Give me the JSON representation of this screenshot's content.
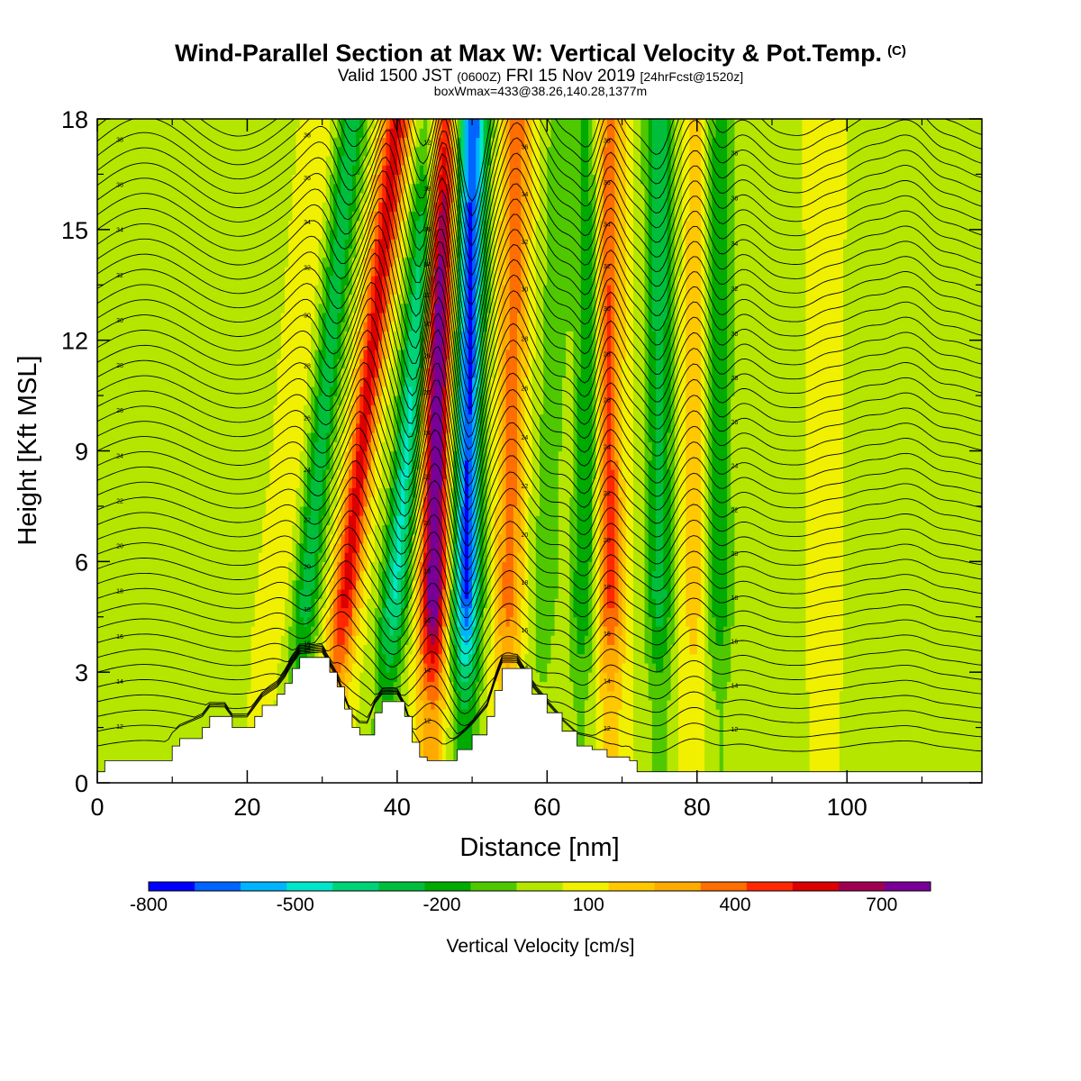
{
  "header": {
    "title": "Wind-Parallel Section at Max W: Vertical Velocity & Pot.Temp.",
    "title_mark": "(C)",
    "valid_prefix": "Valid 1500 JST",
    "valid_z": "(0600Z)",
    "valid_date": "FRI 15 Nov 2019",
    "forecast": "[24hrFcst@1520z]",
    "boxinfo": "boxWmax=433@38.26,140.28,1377m"
  },
  "chart_data": {
    "type": "heatmap",
    "title": "Wind-Parallel Section at Max W: Vertical Velocity & Pot.Temp.",
    "xlabel": "Distance [nm]",
    "ylabel": "Height [Kft MSL]",
    "xlim": [
      0,
      118
    ],
    "ylim": [
      0,
      18
    ],
    "x_ticks": [
      "0",
      "20",
      "40",
      "60",
      "80",
      "100"
    ],
    "y_ticks": [
      "0",
      "3",
      "6",
      "9",
      "12",
      "15",
      "18"
    ],
    "fill_variable": "Vertical Velocity [cm/s]",
    "contour_variable": "Potential Temperature (C)",
    "colorbar": {
      "label": "Vertical Velocity [cm/s]",
      "range": [
        -800,
        800
      ],
      "tick_labels": [
        "-800",
        "-500",
        "-200",
        "100",
        "400",
        "700"
      ],
      "colors": [
        "#0000ff",
        "#0064ff",
        "#00b4ff",
        "#00e6c8",
        "#00d278",
        "#00be3c",
        "#00aa00",
        "#50c800",
        "#b4e600",
        "#f0f000",
        "#ffc800",
        "#ffaa00",
        "#ff6e00",
        "#ff2800",
        "#dc0000",
        "#a00050",
        "#780096"
      ]
    },
    "bands": [
      {
        "x": 22.0,
        "w": 80,
        "tilt": 8,
        "top_x": 30.0
      },
      {
        "x": 26.0,
        "w": -330,
        "tilt": 8,
        "top_x": 34.0
      },
      {
        "x": 31.0,
        "w": 520,
        "tilt": 8,
        "top_x": 40.0
      },
      {
        "x": 38.0,
        "w": -480,
        "tilt": 6,
        "top_x": 45.0
      },
      {
        "x": 44.5,
        "w": 780,
        "tilt": 4,
        "top_x": 46.0
      },
      {
        "x": 49.0,
        "w": -760,
        "tilt": 2,
        "top_x": 50.0
      },
      {
        "x": 54.5,
        "w": 340,
        "tilt": 3,
        "top_x": 56.0
      },
      {
        "x": 59.0,
        "w": -170,
        "tilt": 4,
        "top_x": 62.0
      },
      {
        "x": 64.5,
        "w": -280,
        "tilt": 3,
        "top_x": 66.0
      },
      {
        "x": 68.5,
        "w": 420,
        "tilt": 1,
        "top_x": 68.0
      },
      {
        "x": 75.0,
        "w": -330,
        "tilt": 2,
        "top_x": 75.0
      },
      {
        "x": 79.5,
        "w": 160,
        "tilt": 2,
        "top_x": 80.0
      },
      {
        "x": 83.0,
        "w": -260,
        "tilt": 1,
        "top_x": 83.0
      },
      {
        "x": 90.0,
        "w": -40,
        "tilt": 0,
        "top_x": 90.0
      },
      {
        "x": 97.0,
        "w": 60,
        "tilt": 0,
        "top_x": 97.0
      },
      {
        "x": 105.0,
        "w": -60,
        "tilt": 0,
        "top_x": 105.0
      },
      {
        "x": 112.0,
        "w": -80,
        "tilt": 0,
        "top_x": 112.0
      }
    ],
    "terrain": [
      [
        0,
        0.3
      ],
      [
        1,
        0.6
      ],
      [
        9,
        0.6
      ],
      [
        10,
        1.0
      ],
      [
        11,
        1.2
      ],
      [
        14,
        1.5
      ],
      [
        15,
        1.8
      ],
      [
        17,
        1.8
      ],
      [
        18,
        1.5
      ],
      [
        20,
        1.5
      ],
      [
        21,
        1.8
      ],
      [
        22,
        2.1
      ],
      [
        24,
        2.4
      ],
      [
        25,
        2.7
      ],
      [
        26,
        3.1
      ],
      [
        27,
        3.4
      ],
      [
        30,
        3.4
      ],
      [
        31,
        3.0
      ],
      [
        32,
        2.6
      ],
      [
        33,
        2.0
      ],
      [
        34,
        1.5
      ],
      [
        35,
        1.3
      ],
      [
        36,
        1.3
      ],
      [
        37,
        1.9
      ],
      [
        38,
        2.2
      ],
      [
        40,
        2.2
      ],
      [
        41,
        1.8
      ],
      [
        42,
        1.1
      ],
      [
        43,
        0.7
      ],
      [
        44,
        0.6
      ],
      [
        46,
        0.6
      ],
      [
        48,
        0.9
      ],
      [
        50,
        1.3
      ],
      [
        52,
        1.8
      ],
      [
        53,
        2.5
      ],
      [
        54,
        3.1
      ],
      [
        56,
        3.1
      ],
      [
        58,
        2.4
      ],
      [
        60,
        1.9
      ],
      [
        62,
        1.4
      ],
      [
        64,
        1.0
      ],
      [
        66,
        0.9
      ],
      [
        68,
        0.7
      ],
      [
        71,
        0.6
      ],
      [
        72,
        0.3
      ],
      [
        118,
        0.3
      ]
    ],
    "contour_labels": [
      "12",
      "14",
      "16",
      "18",
      "20",
      "22",
      "24",
      "26",
      "28",
      "30",
      "32",
      "34",
      "36",
      "38"
    ]
  }
}
